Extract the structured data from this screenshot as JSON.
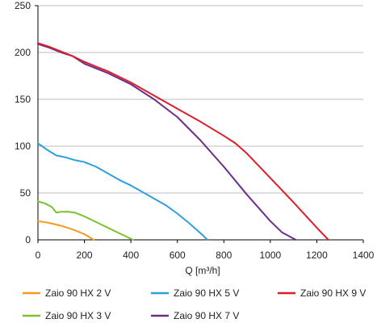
{
  "chart_data": {
    "type": "line",
    "title": "",
    "xlabel": "Q [m³/h]",
    "ylabel": "",
    "xlim": [
      0,
      1400
    ],
    "ylim": [
      0,
      250
    ],
    "xticks": [
      0,
      200,
      400,
      600,
      800,
      1000,
      1200,
      1400
    ],
    "yticks": [
      0,
      50,
      100,
      150,
      200,
      250
    ],
    "grid": "horizontal",
    "legend": "bottom",
    "series": [
      {
        "name": "Zaio 90 HX 2 V",
        "color": "#f39a1f",
        "points": [
          [
            0,
            20
          ],
          [
            50,
            18
          ],
          [
            100,
            15
          ],
          [
            150,
            11
          ],
          [
            200,
            6
          ],
          [
            240,
            0
          ]
        ]
      },
      {
        "name": "Zaio 90 HX 3 V",
        "color": "#7cbf2f",
        "points": [
          [
            0,
            41
          ],
          [
            30,
            39
          ],
          [
            60,
            35
          ],
          [
            80,
            29
          ],
          [
            100,
            30
          ],
          [
            130,
            30
          ],
          [
            160,
            29
          ],
          [
            200,
            25
          ],
          [
            250,
            19
          ],
          [
            300,
            13
          ],
          [
            350,
            7
          ],
          [
            410,
            0
          ]
        ]
      },
      {
        "name": "Zaio 90 HX 5 V",
        "color": "#2f9fdc",
        "points": [
          [
            0,
            103
          ],
          [
            40,
            96
          ],
          [
            80,
            90
          ],
          [
            120,
            88
          ],
          [
            160,
            85
          ],
          [
            200,
            83
          ],
          [
            250,
            78
          ],
          [
            300,
            71
          ],
          [
            350,
            64
          ],
          [
            400,
            58
          ],
          [
            450,
            51
          ],
          [
            500,
            44
          ],
          [
            550,
            37
          ],
          [
            600,
            28
          ],
          [
            650,
            18
          ],
          [
            700,
            7
          ],
          [
            730,
            0
          ]
        ]
      },
      {
        "name": "Zaio 90 HX 7 V",
        "color": "#6d2e8a",
        "points": [
          [
            0,
            209
          ],
          [
            50,
            205
          ],
          [
            100,
            200
          ],
          [
            150,
            196
          ],
          [
            200,
            188
          ],
          [
            300,
            178
          ],
          [
            400,
            166
          ],
          [
            500,
            150
          ],
          [
            600,
            131
          ],
          [
            700,
            106
          ],
          [
            800,
            78
          ],
          [
            900,
            48
          ],
          [
            1000,
            20
          ],
          [
            1050,
            8
          ],
          [
            1110,
            0
          ]
        ]
      },
      {
        "name": "Zaio 90 HX 9 V",
        "color": "#d9202a",
        "points": [
          [
            0,
            210
          ],
          [
            50,
            206
          ],
          [
            100,
            201
          ],
          [
            150,
            196
          ],
          [
            200,
            190
          ],
          [
            300,
            180
          ],
          [
            400,
            168
          ],
          [
            500,
            154
          ],
          [
            600,
            140
          ],
          [
            700,
            126
          ],
          [
            800,
            111
          ],
          [
            850,
            103
          ],
          [
            900,
            92
          ],
          [
            1000,
            66
          ],
          [
            1100,
            40
          ],
          [
            1200,
            13
          ],
          [
            1250,
            0
          ]
        ]
      }
    ]
  }
}
